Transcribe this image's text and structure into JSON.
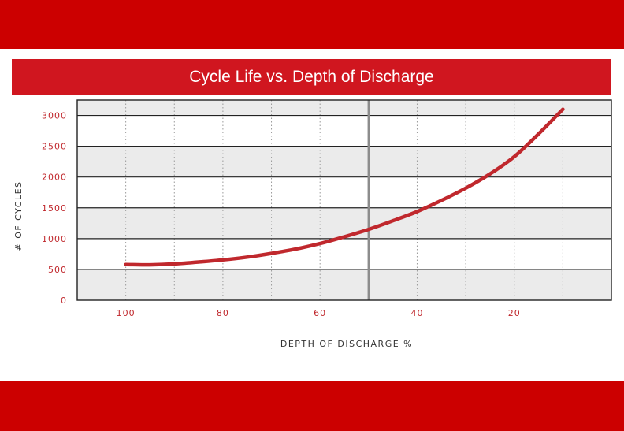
{
  "chart_data": {
    "type": "line",
    "title": "Cycle Life vs. Depth of Discharge",
    "xlabel": "DEPTH OF DISCHARGE %",
    "ylabel": "# OF CYCLES",
    "xlim": [
      110,
      0
    ],
    "ylim": [
      0,
      3250
    ],
    "x_ticks": [
      100,
      80,
      60,
      40,
      20
    ],
    "x_tick_labels": [
      "100",
      "80",
      "60",
      "40",
      "20"
    ],
    "y_ticks": [
      0,
      500,
      1000,
      1500,
      2000,
      2500,
      3000
    ],
    "y_tick_labels": [
      "0",
      "500",
      "1000",
      "1500",
      "2000",
      "2500",
      "3000"
    ],
    "grid": true,
    "reference_line_x": 50,
    "series": [
      {
        "name": "",
        "color": "#c0282d",
        "x": [
          100,
          95,
          90,
          85,
          80,
          75,
          70,
          65,
          60,
          55,
          50,
          45,
          40,
          35,
          30,
          25,
          20,
          15,
          10
        ],
        "y": [
          580,
          575,
          590,
          620,
          655,
          700,
          760,
          830,
          920,
          1030,
          1150,
          1290,
          1440,
          1620,
          1820,
          2050,
          2330,
          2700,
          3100
        ]
      }
    ]
  },
  "colors": {
    "band": "#cc0000",
    "title_bar": "#d0161f",
    "line": "#c0282d",
    "band_fill": "#ebebeb"
  }
}
